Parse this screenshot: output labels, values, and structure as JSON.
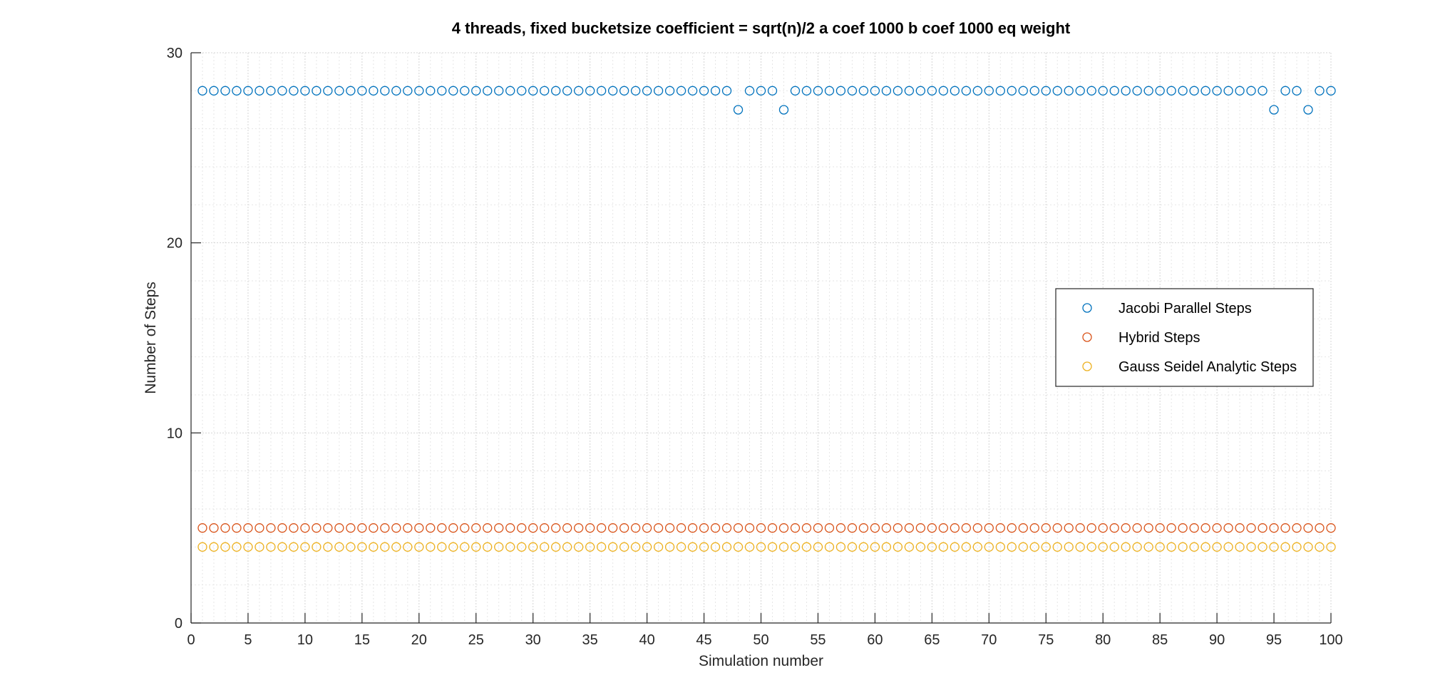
{
  "chart_data": {
    "type": "scatter",
    "title": "4 threads, fixed bucketsize coefficient = sqrt(n)/2 a coef 1000 b coef 1000 eq weight",
    "xlabel": "Simulation number",
    "ylabel": "Number of Steps",
    "xlim": [
      0,
      100
    ],
    "ylim": [
      0,
      30
    ],
    "xticks": [
      0,
      5,
      10,
      15,
      20,
      25,
      30,
      35,
      40,
      45,
      50,
      55,
      60,
      65,
      70,
      75,
      80,
      85,
      90,
      95,
      100
    ],
    "yticks": [
      0,
      10,
      20,
      30
    ],
    "grid": true,
    "minor_grid": true,
    "legend_position": "right",
    "marker": "open-circle",
    "x": [
      1,
      2,
      3,
      4,
      5,
      6,
      7,
      8,
      9,
      10,
      11,
      12,
      13,
      14,
      15,
      16,
      17,
      18,
      19,
      20,
      21,
      22,
      23,
      24,
      25,
      26,
      27,
      28,
      29,
      30,
      31,
      32,
      33,
      34,
      35,
      36,
      37,
      38,
      39,
      40,
      41,
      42,
      43,
      44,
      45,
      46,
      47,
      48,
      49,
      50,
      51,
      52,
      53,
      54,
      55,
      56,
      57,
      58,
      59,
      60,
      61,
      62,
      63,
      64,
      65,
      66,
      67,
      68,
      69,
      70,
      71,
      72,
      73,
      74,
      75,
      76,
      77,
      78,
      79,
      80,
      81,
      82,
      83,
      84,
      85,
      86,
      87,
      88,
      89,
      90,
      91,
      92,
      93,
      94,
      95,
      96,
      97,
      98,
      99,
      100
    ],
    "series": [
      {
        "name": "Jacobi Parallel Steps",
        "color": "#0072BD",
        "values": [
          28,
          28,
          28,
          28,
          28,
          28,
          28,
          28,
          28,
          28,
          28,
          28,
          28,
          28,
          28,
          28,
          28,
          28,
          28,
          28,
          28,
          28,
          28,
          28,
          28,
          28,
          28,
          28,
          28,
          28,
          28,
          28,
          28,
          28,
          28,
          28,
          28,
          28,
          28,
          28,
          28,
          28,
          28,
          28,
          28,
          28,
          28,
          27,
          28,
          28,
          28,
          27,
          28,
          28,
          28,
          28,
          28,
          28,
          28,
          28,
          28,
          28,
          28,
          28,
          28,
          28,
          28,
          28,
          28,
          28,
          28,
          28,
          28,
          28,
          28,
          28,
          28,
          28,
          28,
          28,
          28,
          28,
          28,
          28,
          28,
          28,
          28,
          28,
          28,
          28,
          28,
          28,
          28,
          28,
          27,
          28,
          28,
          27,
          28,
          28
        ]
      },
      {
        "name": "Hybrid Steps",
        "color": "#D95319",
        "values": [
          5,
          5,
          5,
          5,
          5,
          5,
          5,
          5,
          5,
          5,
          5,
          5,
          5,
          5,
          5,
          5,
          5,
          5,
          5,
          5,
          5,
          5,
          5,
          5,
          5,
          5,
          5,
          5,
          5,
          5,
          5,
          5,
          5,
          5,
          5,
          5,
          5,
          5,
          5,
          5,
          5,
          5,
          5,
          5,
          5,
          5,
          5,
          5,
          5,
          5,
          5,
          5,
          5,
          5,
          5,
          5,
          5,
          5,
          5,
          5,
          5,
          5,
          5,
          5,
          5,
          5,
          5,
          5,
          5,
          5,
          5,
          5,
          5,
          5,
          5,
          5,
          5,
          5,
          5,
          5,
          5,
          5,
          5,
          5,
          5,
          5,
          5,
          5,
          5,
          5,
          5,
          5,
          5,
          5,
          5,
          5,
          5,
          5,
          5,
          5
        ]
      },
      {
        "name": "Gauss Seidel Analytic Steps",
        "color": "#EDB120",
        "values": [
          4,
          4,
          4,
          4,
          4,
          4,
          4,
          4,
          4,
          4,
          4,
          4,
          4,
          4,
          4,
          4,
          4,
          4,
          4,
          4,
          4,
          4,
          4,
          4,
          4,
          4,
          4,
          4,
          4,
          4,
          4,
          4,
          4,
          4,
          4,
          4,
          4,
          4,
          4,
          4,
          4,
          4,
          4,
          4,
          4,
          4,
          4,
          4,
          4,
          4,
          4,
          4,
          4,
          4,
          4,
          4,
          4,
          4,
          4,
          4,
          4,
          4,
          4,
          4,
          4,
          4,
          4,
          4,
          4,
          4,
          4,
          4,
          4,
          4,
          4,
          4,
          4,
          4,
          4,
          4,
          4,
          4,
          4,
          4,
          4,
          4,
          4,
          4,
          4,
          4,
          4,
          4,
          4,
          4,
          4,
          4,
          4,
          4,
          4,
          4
        ]
      }
    ]
  }
}
